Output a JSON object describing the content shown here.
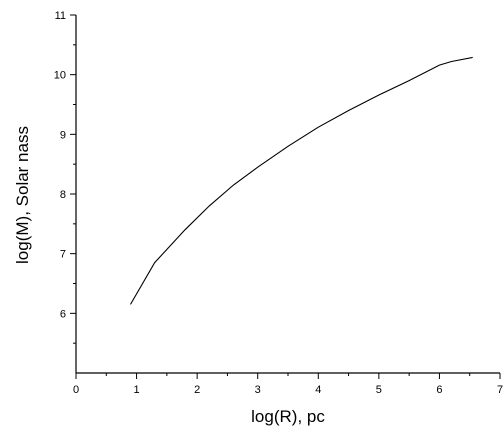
{
  "chart_data": {
    "type": "line",
    "title": "",
    "xlabel": "log(R), pc",
    "ylabel": "log(M), Solar nass",
    "xlim": [
      0,
      7
    ],
    "ylim": [
      5,
      11
    ],
    "x_ticks": [
      0,
      1,
      2,
      3,
      4,
      5,
      6,
      7
    ],
    "y_ticks": [
      6,
      7,
      8,
      9,
      10,
      11
    ],
    "x_tick_labels": [
      "0",
      "1",
      "2",
      "3",
      "4",
      "5",
      "6",
      "7"
    ],
    "y_tick_labels": [
      "6",
      "7",
      "8",
      "9",
      "10",
      "11"
    ],
    "grid": false,
    "series": [
      {
        "x": [
          0.9,
          1.3,
          1.8,
          2.2,
          2.6,
          3.0,
          3.5,
          4.0,
          4.5,
          5.0,
          5.5,
          6.0,
          6.2,
          6.55
        ],
        "y": [
          6.15,
          6.85,
          7.4,
          7.8,
          8.15,
          8.45,
          8.8,
          9.12,
          9.4,
          9.66,
          9.9,
          10.16,
          10.22,
          10.29
        ]
      }
    ]
  }
}
